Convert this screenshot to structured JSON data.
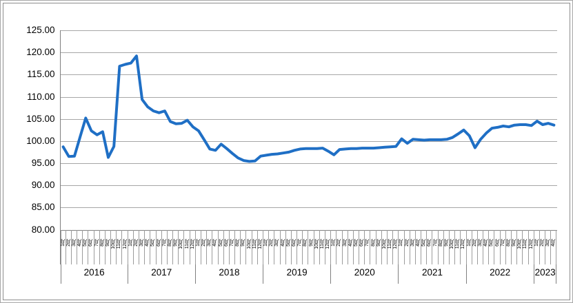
{
  "chart_data": {
    "type": "line",
    "title": "",
    "legend": "none",
    "grid": "horizontal",
    "line_color": "#1f6fc5",
    "gridline_color": "#a6a6a6",
    "axis_line_color": "#7f7f7f",
    "y_axis": {
      "min": 80,
      "max": 125,
      "step": 5,
      "tick_labels": [
        "125.00",
        "120.00",
        "115.00",
        "110.00",
        "105.00",
        "100.00",
        "95.00",
        "90.00",
        "85.00",
        "80.00"
      ]
    },
    "x_axis": {
      "level1_note": "monthly tick labels rotated vertically",
      "level2_note": "year group labels",
      "years": [
        {
          "label": "2016",
          "month_labels": [
            "1月",
            "2月",
            "3月",
            "4月",
            "5月",
            "6月",
            "7月",
            "8月",
            "9月",
            "10月",
            "11月",
            "12月"
          ],
          "values": [
            98.7,
            96.5,
            96.6,
            100.9,
            105.2,
            102.3,
            101.4,
            102.1,
            96.3,
            98.8,
            116.9,
            117.3
          ]
        },
        {
          "label": "2017",
          "month_labels": [
            "1月",
            "2月",
            "3月",
            "4月",
            "5月",
            "6月",
            "7月",
            "8月",
            "9月",
            "10月",
            "11月",
            "12月"
          ],
          "values": [
            117.6,
            119.2,
            109.4,
            107.7,
            106.8,
            106.4,
            106.8,
            104.4,
            103.9,
            104.0,
            104.7,
            103.2
          ]
        },
        {
          "label": "2018",
          "month_labels": [
            "1月",
            "2月",
            "3月",
            "4月",
            "5月",
            "6月",
            "7月",
            "8月",
            "9月",
            "10月",
            "11月",
            "12月"
          ],
          "values": [
            102.3,
            100.3,
            98.2,
            97.9,
            99.3,
            98.3,
            97.2,
            96.2,
            95.6,
            95.4,
            95.5,
            96.6
          ]
        },
        {
          "label": "2019",
          "month_labels": [
            "1月",
            "2月",
            "3月",
            "4月",
            "5月",
            "6月",
            "7月",
            "8月",
            "9月",
            "10月",
            "11月",
            "12月"
          ],
          "values": [
            96.8,
            97.0,
            97.1,
            97.3,
            97.5,
            97.9,
            98.2,
            98.3,
            98.3,
            98.3,
            98.4,
            97.7
          ]
        },
        {
          "label": "2020",
          "month_labels": [
            "1月",
            "2月",
            "3月",
            "4月",
            "5月",
            "6月",
            "7月",
            "8月",
            "9月",
            "10月",
            "11月",
            "12月"
          ],
          "values": [
            96.9,
            98.1,
            98.2,
            98.3,
            98.3,
            98.4,
            98.4,
            98.4,
            98.5,
            98.6,
            98.7,
            98.8
          ]
        },
        {
          "label": "2021",
          "month_labels": [
            "1月",
            "2月",
            "3月",
            "4月",
            "5月",
            "6月",
            "7月",
            "8月",
            "9月",
            "10月",
            "11月",
            "12月"
          ],
          "values": [
            100.5,
            99.5,
            100.4,
            100.3,
            100.2,
            100.3,
            100.3,
            100.3,
            100.4,
            100.8,
            101.6,
            102.5
          ]
        },
        {
          "label": "2022",
          "month_labels": [
            "1月",
            "2月",
            "3月",
            "4月",
            "5月",
            "6月",
            "7月",
            "8月",
            "9月",
            "10月",
            "11月",
            "12月"
          ],
          "values": [
            101.2,
            98.5,
            100.4,
            101.8,
            102.9,
            103.1,
            103.4,
            103.2,
            103.6,
            103.7,
            103.7,
            103.5
          ]
        },
        {
          "label": "2023",
          "month_labels": [
            "1月",
            "2月",
            "3月",
            "4月"
          ],
          "values": [
            104.5,
            103.7,
            104.0,
            103.6
          ]
        }
      ]
    }
  }
}
